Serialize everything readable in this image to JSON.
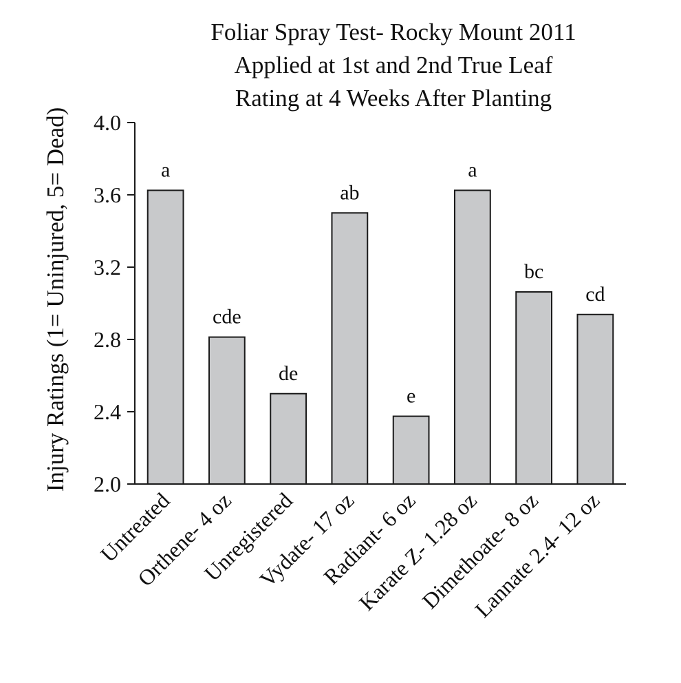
{
  "chart_data": {
    "type": "bar",
    "title": [
      "Foliar Spray Test- Rocky Mount 2011",
      "Applied at 1st and 2nd True Leaf",
      "Rating at 4 Weeks After Planting"
    ],
    "xlabel": "",
    "ylabel": "Injury Ratings (1= Uninjured, 5= Dead)",
    "ylim": [
      2.0,
      4.0
    ],
    "yticks": [
      "2.0",
      "2.4",
      "2.8",
      "3.2",
      "3.6",
      "4.0"
    ],
    "grid": false,
    "categories": [
      "Untreated",
      "Orthene- 4 oz",
      "Unregistered",
      "Vydate- 17 oz",
      "Radiant- 6 oz",
      "Karate Z- 1.28 oz",
      "Dimethoate- 8 oz",
      "Lannate 2.4- 12 oz"
    ],
    "values": [
      3.625,
      2.813,
      2.5,
      3.5,
      2.375,
      3.625,
      3.063,
      2.938
    ],
    "letters": [
      "a",
      "cde",
      "de",
      "ab",
      "e",
      "a",
      "bc",
      "cd"
    ],
    "colors": {
      "bar_fill": "#c8c9cb",
      "bar_stroke": "#1a1a1a",
      "axis": "#1a1a1a"
    }
  }
}
